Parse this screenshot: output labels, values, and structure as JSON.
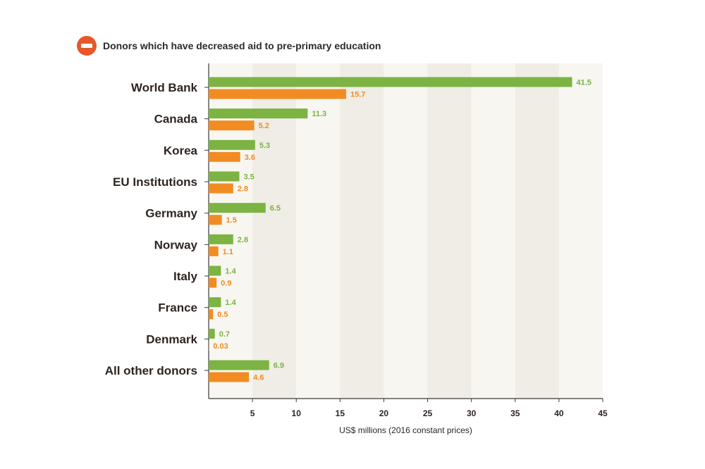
{
  "legend": {
    "icon": "no-entry-icon",
    "label": "Donors which have decreased aid to pre-primary education",
    "icon_color": "#e8562a"
  },
  "chart_data": {
    "type": "bar",
    "orientation": "horizontal",
    "categories": [
      "World Bank",
      "Canada",
      "Korea",
      "EU Institutions",
      "Germany",
      "Norway",
      "Italy",
      "France",
      "Denmark",
      "All other donors"
    ],
    "series": [
      {
        "values": [
          41.5,
          11.3,
          5.3,
          3.5,
          6.5,
          2.8,
          1.4,
          1.4,
          0.7,
          6.9
        ],
        "labels": [
          "41.5",
          "11.3",
          "5.3",
          "3.5",
          "6.5",
          "2.8",
          "1.4",
          "1.4",
          "0.7",
          "6.9"
        ],
        "color": "#7cb342"
      },
      {
        "values": [
          15.7,
          5.2,
          3.6,
          2.8,
          1.5,
          1.1,
          0.9,
          0.5,
          0.03,
          4.6
        ],
        "labels": [
          "15.7",
          "5.2",
          "3.6",
          "2.8",
          "1.5",
          "1.1",
          "0.9",
          "0.5",
          "0.03",
          "4.6"
        ],
        "color": "#f28c22"
      }
    ],
    "xlabel": "US$ millions (2016 constant prices)",
    "xlim": [
      0,
      45
    ],
    "xticks": [
      5,
      10,
      15,
      20,
      25,
      30,
      35,
      40,
      45
    ],
    "xtick_labels": [
      "5",
      "10",
      "15",
      "20",
      "25",
      "30",
      "35",
      "40",
      "45"
    ],
    "background_bands": [
      "#f7f6f1",
      "#efede5"
    ],
    "grid": false
  }
}
